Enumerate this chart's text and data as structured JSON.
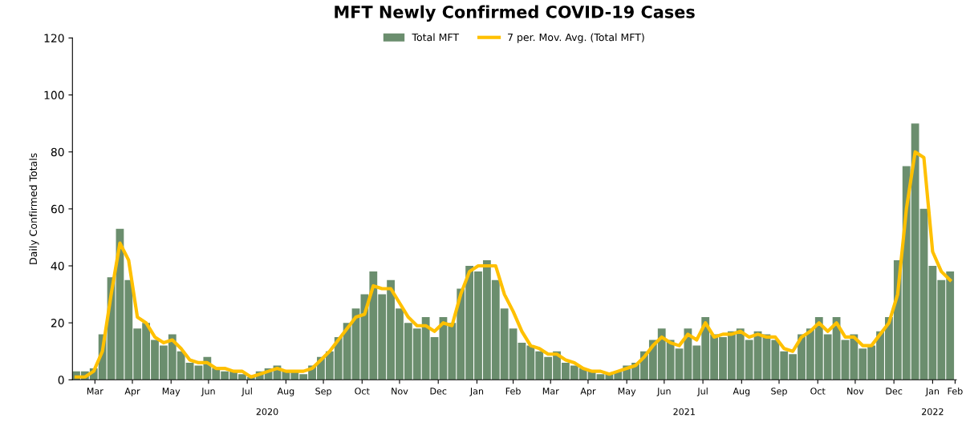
{
  "chart_data": {
    "type": "bar",
    "title": "MFT Newly Confirmed COVID-19 Cases",
    "ylabel": "Daily Confirmed Totals",
    "x": [
      "2020-03-01",
      "2020-03-08",
      "2020-03-15",
      "2020-03-22",
      "2020-03-29",
      "2020-04-05",
      "2020-04-12",
      "2020-04-19",
      "2020-04-26",
      "2020-05-03",
      "2020-05-10",
      "2020-05-17",
      "2020-05-24",
      "2020-05-31",
      "2020-06-07",
      "2020-06-14",
      "2020-06-21",
      "2020-06-28",
      "2020-07-05",
      "2020-07-12",
      "2020-07-19",
      "2020-07-26",
      "2020-08-02",
      "2020-08-09",
      "2020-08-16",
      "2020-08-23",
      "2020-08-30",
      "2020-09-06",
      "2020-09-13",
      "2020-09-20",
      "2020-09-27",
      "2020-10-04",
      "2020-10-11",
      "2020-10-18",
      "2020-10-25",
      "2020-11-01",
      "2020-11-08",
      "2020-11-15",
      "2020-11-22",
      "2020-11-29",
      "2020-12-06",
      "2020-12-13",
      "2020-12-20",
      "2020-12-27",
      "2021-01-03",
      "2021-01-10",
      "2021-01-17",
      "2021-01-24",
      "2021-01-31",
      "2021-02-07",
      "2021-02-14",
      "2021-02-21",
      "2021-02-28",
      "2021-03-07",
      "2021-03-14",
      "2021-03-21",
      "2021-03-28",
      "2021-04-04",
      "2021-04-11",
      "2021-04-18",
      "2021-04-25",
      "2021-05-02",
      "2021-05-09",
      "2021-05-16",
      "2021-05-23",
      "2021-05-30",
      "2021-06-06",
      "2021-06-13",
      "2021-06-20",
      "2021-06-27",
      "2021-07-04",
      "2021-07-11",
      "2021-07-18",
      "2021-07-25",
      "2021-08-01",
      "2021-08-08",
      "2021-08-15",
      "2021-08-22",
      "2021-08-29",
      "2021-09-05",
      "2021-09-12",
      "2021-09-19",
      "2021-09-26",
      "2021-10-03",
      "2021-10-10",
      "2021-10-17",
      "2021-10-24",
      "2021-10-31",
      "2021-11-07",
      "2021-11-14",
      "2021-11-21",
      "2021-11-28",
      "2021-12-05",
      "2021-12-12",
      "2021-12-19",
      "2021-12-26",
      "2022-01-02",
      "2022-01-09",
      "2022-01-16",
      "2022-01-23",
      "2022-01-30"
    ],
    "series": [
      {
        "name": "Total MFT",
        "color": "#6b8e6e",
        "values": [
          3,
          3,
          4,
          16,
          36,
          53,
          35,
          18,
          20,
          14,
          12,
          16,
          10,
          6,
          5,
          8,
          4,
          3,
          3,
          2,
          1,
          3,
          4,
          5,
          3,
          3,
          2,
          5,
          8,
          10,
          15,
          20,
          25,
          30,
          38,
          30,
          35,
          25,
          20,
          18,
          22,
          15,
          22,
          20,
          32,
          40,
          38,
          42,
          35,
          25,
          18,
          13,
          12,
          10,
          8,
          10,
          6,
          5,
          4,
          3,
          2,
          2,
          3,
          5,
          6,
          10,
          14,
          18,
          14,
          11,
          18,
          12,
          22,
          16,
          15,
          17,
          18,
          14,
          17,
          16,
          14,
          10,
          9,
          16,
          18,
          22,
          16,
          22,
          14,
          16,
          11,
          12,
          17,
          22,
          42,
          75,
          90,
          60,
          40,
          35,
          38
        ]
      },
      {
        "name": "7 per. Mov. Avg. (Total MFT)",
        "type": "line",
        "color": "#ffc000",
        "values": [
          1,
          1,
          3,
          10,
          30,
          48,
          42,
          22,
          20,
          15,
          13,
          14,
          11,
          7,
          6,
          6,
          4,
          4,
          3,
          3,
          1,
          2,
          3,
          4,
          3,
          3,
          3,
          4,
          7,
          10,
          14,
          18,
          22,
          23,
          33,
          32,
          32,
          27,
          22,
          19,
          19,
          17,
          20,
          19,
          30,
          38,
          40,
          40,
          40,
          30,
          24,
          17,
          12,
          11,
          9,
          9,
          7,
          6,
          4,
          3,
          3,
          2,
          3,
          4,
          5,
          8,
          12,
          15,
          13,
          12,
          16,
          14,
          20,
          15,
          16,
          16,
          17,
          15,
          16,
          15,
          15,
          11,
          10,
          15,
          17,
          20,
          17,
          20,
          15,
          15,
          12,
          12,
          16,
          20,
          30,
          60,
          80,
          78,
          45,
          38,
          35
        ]
      }
    ],
    "xlim": [
      "2020-02-27",
      "2022-02-04"
    ],
    "xticks": [
      {
        "value": "2020-03-16",
        "label": "Mar"
      },
      {
        "value": "2020-04-15",
        "label": "Apr"
      },
      {
        "value": "2020-05-16",
        "label": "May"
      },
      {
        "value": "2020-06-15",
        "label": "Jun"
      },
      {
        "value": "2020-07-16",
        "label": "Jul"
      },
      {
        "value": "2020-08-16",
        "label": "Aug"
      },
      {
        "value": "2020-09-15",
        "label": "Sep"
      },
      {
        "value": "2020-10-16",
        "label": "Oct"
      },
      {
        "value": "2020-11-15",
        "label": "Nov"
      },
      {
        "value": "2020-12-16",
        "label": "Dec"
      },
      {
        "value": "2021-01-16",
        "label": "Jan"
      },
      {
        "value": "2021-02-14",
        "label": "Feb"
      },
      {
        "value": "2021-03-16",
        "label": "Mar"
      },
      {
        "value": "2021-04-15",
        "label": "Apr"
      },
      {
        "value": "2021-05-16",
        "label": "May"
      },
      {
        "value": "2021-06-15",
        "label": "Jun"
      },
      {
        "value": "2021-07-16",
        "label": "Jul"
      },
      {
        "value": "2021-08-16",
        "label": "Aug"
      },
      {
        "value": "2021-09-15",
        "label": "Sep"
      },
      {
        "value": "2021-10-16",
        "label": "Oct"
      },
      {
        "value": "2021-11-15",
        "label": "Nov"
      },
      {
        "value": "2021-12-16",
        "label": "Dec"
      },
      {
        "value": "2022-01-16",
        "label": "Jan"
      },
      {
        "value": "2022-02-03",
        "label": "Feb"
      }
    ],
    "x2lim": [
      "2020-02-27",
      "2022-02-04"
    ],
    "x2ticks": [
      {
        "value": "2020-08-01",
        "label": "2020"
      },
      {
        "value": "2021-07-01",
        "label": "2021"
      },
      {
        "value": "2022-01-16",
        "label": "2022"
      }
    ],
    "ylim": [
      0,
      120
    ],
    "yticks": [
      0,
      20,
      40,
      60,
      80,
      100,
      120
    ],
    "grid": false,
    "legend": "top"
  }
}
